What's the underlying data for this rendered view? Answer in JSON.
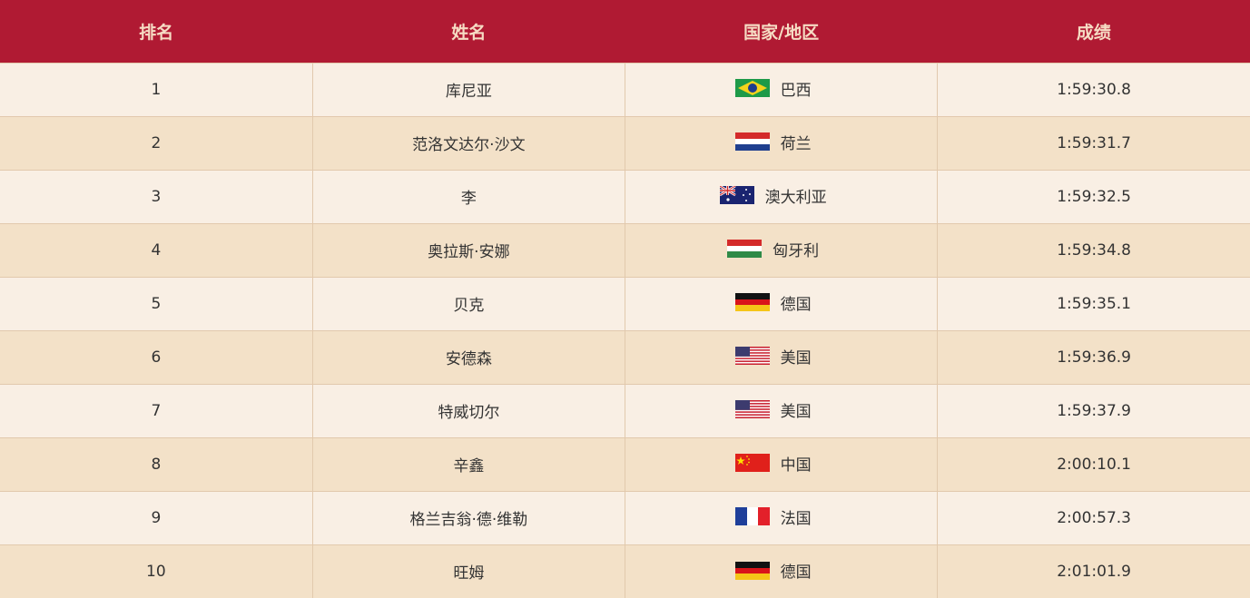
{
  "header": {
    "rank": "排名",
    "name": "姓名",
    "country": "国家/地区",
    "result": "成绩"
  },
  "colors": {
    "header_bg": "#b01a33",
    "header_text": "#f6dcc4",
    "row_light": "#f9efe4",
    "row_dark": "#f3e1c8"
  },
  "rows": [
    {
      "rank": "1",
      "name": "库尼亚",
      "country": "巴西",
      "flag": "brazil-flag-icon",
      "result": "1:59:30.8"
    },
    {
      "rank": "2",
      "name": "范洛文达尔·沙文",
      "country": "荷兰",
      "flag": "netherlands-flag-icon",
      "result": "1:59:31.7"
    },
    {
      "rank": "3",
      "name": "李",
      "country": "澳大利亚",
      "flag": "australia-flag-icon",
      "result": "1:59:32.5"
    },
    {
      "rank": "4",
      "name": "奥拉斯·安娜",
      "country": "匈牙利",
      "flag": "hungary-flag-icon",
      "result": "1:59:34.8"
    },
    {
      "rank": "5",
      "name": "贝克",
      "country": "德国",
      "flag": "germany-flag-icon",
      "result": "1:59:35.1"
    },
    {
      "rank": "6",
      "name": "安德森",
      "country": "美国",
      "flag": "usa-flag-icon",
      "result": "1:59:36.9"
    },
    {
      "rank": "7",
      "name": "特威切尔",
      "country": "美国",
      "flag": "usa-flag-icon",
      "result": "1:59:37.9"
    },
    {
      "rank": "8",
      "name": "辛鑫",
      "country": "中国",
      "flag": "china-flag-icon",
      "result": "2:00:10.1"
    },
    {
      "rank": "9",
      "name": "格兰吉翁·德·维勒",
      "country": "法国",
      "flag": "france-flag-icon",
      "result": "2:00:57.3"
    },
    {
      "rank": "10",
      "name": "旺姆",
      "country": "德国",
      "flag": "germany-flag-icon",
      "result": "2:01:01.9"
    }
  ]
}
